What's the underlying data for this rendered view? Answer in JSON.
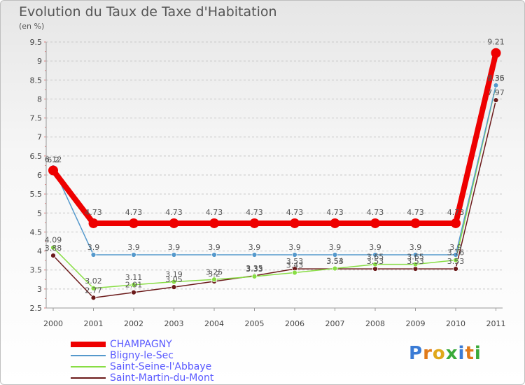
{
  "chart_data": {
    "type": "line",
    "title": "Evolution du Taux de Taxe d'Habitation",
    "subtitle": "(en %)",
    "categories": [
      "2000",
      "2001",
      "2002",
      "2003",
      "2004",
      "2005",
      "2006",
      "2007",
      "2008",
      "2009",
      "2010",
      "2011"
    ],
    "ylim": [
      2.5,
      9.5
    ],
    "yticks": [
      "2.5",
      "3",
      "3.5",
      "4",
      "4.5",
      "5",
      "5.5",
      "6",
      "6.5",
      "7",
      "7.5",
      "8",
      "8.5",
      "9",
      "9.5"
    ],
    "grid": "horizontal-dashed",
    "series": [
      {
        "name": "Saint-Martin-du-Mont",
        "color": "#6b1a1a",
        "values": [
          3.88,
          2.77,
          2.91,
          3.05,
          3.2,
          3.35,
          3.53,
          3.53,
          3.53,
          3.53,
          3.53,
          7.97
        ],
        "labels": [
          "3.88",
          "2.77",
          "2.91",
          "3.05",
          "3.2",
          "3.35",
          "3.53",
          "3.53",
          "3.53",
          "3.53",
          "3.53",
          "7.97"
        ]
      },
      {
        "name": "Saint-Seine-l'Abbaye",
        "color": "#88dd44",
        "values": [
          4.09,
          3.02,
          3.11,
          3.19,
          3.25,
          3.33,
          3.43,
          3.54,
          3.65,
          3.65,
          3.76,
          8.35
        ],
        "labels": [
          "4.09",
          "3.02",
          "3.11",
          "3.19",
          "3.25",
          "3.33",
          "3.43",
          "3.54",
          "3.65",
          "3.65",
          "3.76",
          "8.35"
        ]
      },
      {
        "name": "Bligny-le-Sec",
        "color": "#5599cc",
        "values": [
          6.2,
          3.9,
          3.9,
          3.9,
          3.9,
          3.9,
          3.9,
          3.9,
          3.9,
          3.9,
          3.9,
          8.36
        ],
        "labels": [
          "6.2",
          "3.9",
          "3.9",
          "3.9",
          "3.9",
          "3.9",
          "3.9",
          "3.9",
          "3.9",
          "3.9",
          "3.9",
          "8.36"
        ]
      },
      {
        "name": "CHAMPAGNY",
        "color": "#ee0000",
        "values": [
          6.12,
          4.73,
          4.73,
          4.73,
          4.73,
          4.73,
          4.73,
          4.73,
          4.73,
          4.73,
          4.73,
          9.21
        ],
        "labels": [
          "6.12",
          "4.73",
          "4.73",
          "4.73",
          "4.73",
          "4.73",
          "4.73",
          "4.73",
          "4.73",
          "4.73",
          "4.73",
          "9.21"
        ]
      }
    ],
    "legend": [
      "CHAMPAGNY",
      "Bligny-le-Sec",
      "Saint-Seine-l'Abbaye",
      "Saint-Martin-du-Mont"
    ],
    "legend_position": "bottom-left"
  },
  "logo": {
    "text": "Proxiti",
    "letters": [
      "P",
      "r",
      "o",
      "x",
      "i",
      "t",
      "i"
    ],
    "colors": [
      "#3a7bd5",
      "#e07a1a",
      "#e0a81a",
      "#3aaa3a",
      "#3a7bd5",
      "#e07a1a",
      "#3aaa3a"
    ]
  }
}
